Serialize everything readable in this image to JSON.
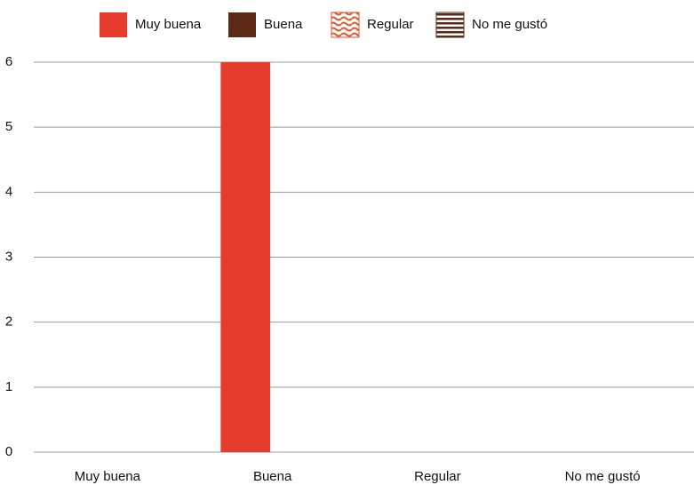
{
  "chart_data": {
    "type": "bar",
    "categories": [
      "Muy buena",
      "Buena",
      "Regular",
      "No me gustó"
    ],
    "series": [
      {
        "name": "Muy buena",
        "color": "#e63c2e",
        "values": [
          0,
          6,
          0,
          0
        ]
      },
      {
        "name": "Buena",
        "color": "#5c2a14",
        "values": [
          0,
          0,
          0,
          0
        ]
      },
      {
        "name": "Regular",
        "color": "#e0552a",
        "pattern": "waves",
        "values": [
          0,
          0,
          0,
          0
        ]
      },
      {
        "name": "No me gustó",
        "color": "#5a2a14",
        "pattern": "stripes",
        "values": [
          0,
          0,
          0,
          0
        ]
      }
    ],
    "ylim": [
      0,
      6
    ],
    "yticks": [
      0,
      1,
      2,
      3,
      4,
      5,
      6
    ],
    "grid": true,
    "legend": "top"
  }
}
